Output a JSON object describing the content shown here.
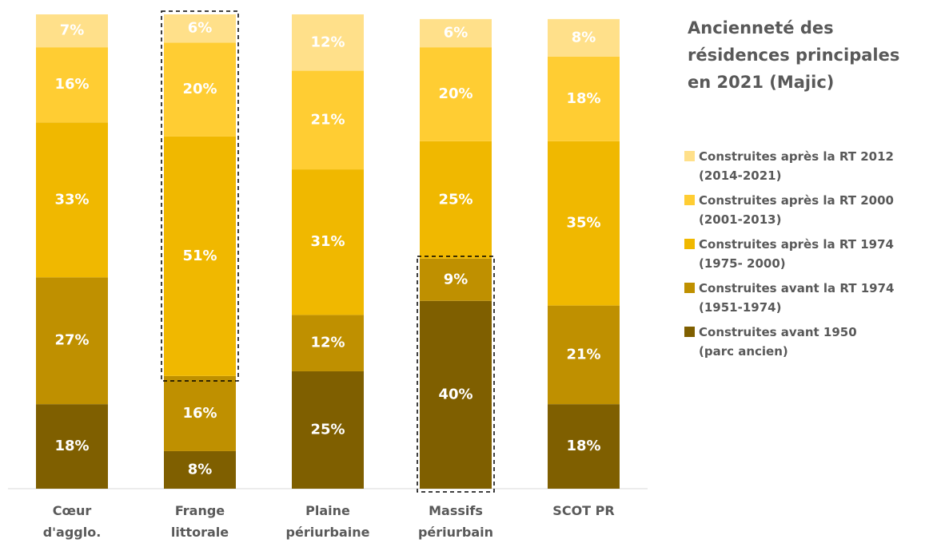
{
  "chart_data": {
    "type": "stacked_bar",
    "title": "Ancienneté des\nrésidences principales\nen 2021 (Majic)",
    "categories": [
      "Cœur\nd'agglo.",
      "Frange\nlittorale",
      "Plaine\npériurbaine",
      "Massifs\npériurbain",
      "SCOT PR"
    ],
    "series": [
      {
        "name": "Construites avant 1950\n(parc ancien)",
        "color": "#7f5f00",
        "values": [
          18,
          8,
          25,
          40,
          18
        ],
        "value_labels": [
          "18%",
          "8%",
          "25%",
          "40%",
          "18%"
        ]
      },
      {
        "name": "Construites avant la RT 1974\n(1951-1974)",
        "color": "#bf9000",
        "values": [
          27,
          16,
          12,
          9,
          21
        ],
        "value_labels": [
          "27%",
          "16%",
          "12%",
          "9%",
          "21%"
        ]
      },
      {
        "name": "Construites après la RT 1974\n(1975- 2000)",
        "color": "#f0b800",
        "values": [
          33,
          51,
          31,
          25,
          35
        ],
        "value_labels": [
          "33%",
          "51%",
          "31%",
          "25%",
          "35%"
        ]
      },
      {
        "name": "Construites après la RT 2000\n(2001-2013)",
        "color": "#ffcd33",
        "values": [
          16,
          20,
          21,
          20,
          18
        ],
        "value_labels": [
          "16%",
          "20%",
          "21%",
          "20%",
          "18%"
        ]
      },
      {
        "name": "Construites après la RT 2012\n(2014-2021)",
        "color": "#ffe08a",
        "values": [
          7,
          6,
          12,
          6,
          8
        ],
        "value_labels": [
          "7%",
          "6%",
          "12%",
          "6%",
          "8%"
        ]
      }
    ]
  }
}
